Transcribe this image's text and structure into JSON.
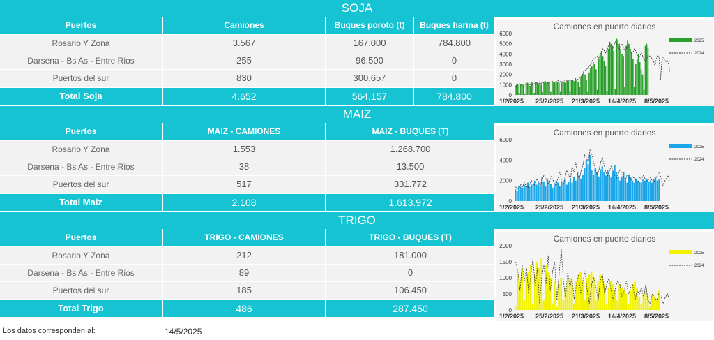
{
  "soja": {
    "title": "SOJA",
    "headers": [
      "Puertos",
      "Camiones",
      "Buques poroto (t)",
      "Buques harina (t)"
    ],
    "rows": [
      [
        "Rosario Y Zona",
        "3.567",
        "167.000",
        "784.800"
      ],
      [
        "Darsena - Bs As - Entre Rios",
        "255",
        "96.500",
        "0"
      ],
      [
        "Puertos del sur",
        "830",
        "300.657",
        "0"
      ]
    ],
    "total": [
      "Total Soja",
      "4.652",
      "564.157",
      "784.800"
    ]
  },
  "maiz": {
    "title": "MAIZ",
    "headers": [
      "Puertos",
      "MAIZ - CAMIONES",
      "MAIZ - BUQUES (T)"
    ],
    "rows": [
      [
        "Rosario Y Zona",
        "1.553",
        "1.268.700"
      ],
      [
        "Darsena - Bs As - Entre Rios",
        "38",
        "13.500"
      ],
      [
        "Puertos del sur",
        "517",
        "331.772"
      ]
    ],
    "total": [
      "Total Maíz",
      "2.108",
      "1.613.972"
    ]
  },
  "trigo": {
    "title": "TRIGO",
    "headers": [
      "Puertos",
      "TRIGO - CAMIONES",
      "TRIGO - BUQUES (T)"
    ],
    "rows": [
      [
        "Rosario Y Zona",
        "212",
        "181.000"
      ],
      [
        "Darsena - Bs As - Entre Rios",
        "89",
        "0"
      ],
      [
        "Puertos del sur",
        "185",
        "106.450"
      ]
    ],
    "total": [
      "Total Trigo",
      "486",
      "287.450"
    ]
  },
  "footer": {
    "label": "Los datos corresponden al:",
    "date": "14/5/2025"
  },
  "chart_data": [
    {
      "type": "bar",
      "title": "Camiones en puerto diarios",
      "color": "#2ca02c",
      "ylim": [
        0,
        6000
      ],
      "yticks": [
        "0",
        "1000",
        "2000",
        "3000",
        "4000",
        "5000",
        "6000"
      ],
      "xticks": [
        "1/2/2025",
        "25/2/2025",
        "21/3/2025",
        "14/4/2025",
        "8/5/2025"
      ],
      "legend": [
        "2025",
        "2024"
      ],
      "series": [
        {
          "name": "2025",
          "values": [
            900,
            1000,
            950,
            200,
            1050,
            1100,
            1000,
            150,
            1150,
            1200,
            1100,
            900,
            1250,
            1200,
            200,
            1250,
            1200,
            1100,
            1300,
            1000,
            250,
            1300,
            1350,
            1200,
            1300,
            1250,
            300,
            1350,
            1300,
            1200,
            1350,
            1300,
            1200,
            300,
            1250,
            1350,
            1300,
            1200,
            1400,
            1350,
            300,
            1500,
            1400,
            1350,
            1600,
            1500,
            1300,
            800,
            1700,
            2000,
            2300,
            2000,
            1500,
            300,
            2200,
            2600,
            2800,
            3200,
            3000,
            2500,
            500,
            3500,
            4000,
            4300,
            3800,
            3300,
            2800,
            400,
            4500,
            5200,
            5000,
            4800,
            4300,
            600,
            5500,
            5400,
            5000,
            4500,
            4000,
            3800,
            800,
            4800,
            5300,
            5000,
            4500,
            4200,
            3500,
            800,
            3000,
            3500,
            4000,
            3200,
            2500,
            2000,
            500,
            4800,
            5000,
            4600
          ]
        },
        {
          "name": "2024",
          "values": [
            800,
            900,
            1000,
            1100,
            1000,
            900,
            850,
            950,
            1000,
            1100,
            1050,
            1000,
            950,
            1000,
            1100,
            1200,
            1150,
            1100,
            1050,
            1150,
            1200,
            1250,
            1300,
            1200,
            1150,
            1250,
            1300,
            1350,
            1250,
            1200,
            1300,
            1400,
            1350,
            1300,
            1250,
            1350,
            1450,
            1400,
            1350,
            1400,
            1500,
            1450,
            1400,
            1500,
            1600,
            1550,
            1500,
            1650,
            1800,
            2000,
            2200,
            2400,
            2500,
            2600,
            2800,
            3000,
            3300,
            3500,
            3600,
            3700,
            3800,
            3600,
            3900,
            4200,
            4500,
            4300,
            4100,
            4400,
            4800,
            5000,
            4700,
            4500,
            4800,
            5200,
            5000,
            4700,
            4500,
            4800,
            5000,
            4600,
            4300,
            4500,
            4800,
            4600,
            4300,
            4000,
            4200,
            4500,
            4300,
            3900,
            3600,
            3800,
            4100,
            3800,
            3500,
            3300,
            3600,
            3900,
            3800,
            3700,
            3500,
            3300,
            2800,
            3600,
            3900,
            3600,
            1500,
            3300,
            3700,
            3500,
            3200,
            3400,
            3000,
            2200
          ]
        }
      ]
    },
    {
      "type": "bar",
      "title": "Camiones en puerto diarios",
      "color": "#1aa6e8",
      "ylim": [
        0,
        6000
      ],
      "yticks": [
        "0",
        "2000",
        "4000",
        "6000"
      ],
      "xticks": [
        "1/2/2025",
        "25/2/2025",
        "21/3/2025",
        "14/4/2025",
        "8/5/2025"
      ],
      "legend": [
        "2025",
        "2024"
      ],
      "series": [
        {
          "name": "2025",
          "values": [
            1200,
            1000,
            1500,
            1400,
            1300,
            1600,
            1500,
            1800,
            1400,
            1600,
            1700,
            2000,
            1600,
            1800,
            1500,
            2300,
            1900,
            1500,
            2200,
            2000,
            1700,
            1300,
            1600,
            2000,
            1800,
            1500,
            1900,
            1700,
            2200,
            1600,
            1900,
            2100,
            1800,
            2400,
            2000,
            2800,
            2400,
            2200,
            2600,
            3200,
            4000,
            3600,
            4500,
            3000,
            2600,
            3200,
            2800,
            2400,
            3100,
            3400,
            2800,
            2500,
            3000,
            2600,
            2300,
            2900,
            3500,
            2800,
            2400,
            2000,
            2400,
            2800,
            2200,
            1800,
            2600,
            2300,
            2000,
            1800,
            2200,
            2000,
            1900,
            1800,
            2100,
            2000,
            2200,
            1900,
            2000,
            1800,
            2200,
            2300,
            2000,
            2100
          ]
        },
        {
          "name": "2024",
          "values": [
            1400,
            1200,
            1300,
            1600,
            1400,
            1800,
            1500,
            1300,
            1700,
            2000,
            1800,
            1500,
            2200,
            1900,
            1500,
            2100,
            2500,
            2300,
            1800,
            1600,
            2400,
            2100,
            1700,
            1500,
            2300,
            2800,
            2000,
            1600,
            2400,
            3000,
            2500,
            2200,
            3400,
            2800,
            3800,
            2600,
            2200,
            3000,
            3500,
            4500,
            4200,
            3800,
            5000,
            4600,
            3800,
            3200,
            2600,
            3000,
            3800,
            4200,
            3500,
            2800,
            2400,
            3000,
            3400,
            2900,
            2500,
            2200,
            2700,
            3100,
            2800,
            2400,
            2100,
            2600,
            2300,
            2000,
            2400,
            2200,
            2000,
            1800,
            2300,
            2100,
            2500,
            2200,
            1900,
            2100,
            2300,
            2000,
            1800,
            2200,
            2500,
            2800,
            2300,
            1500,
            1900,
            2200,
            2500,
            2000
          ]
        }
      ]
    },
    {
      "type": "bar",
      "title": "Camiones en puerto diarios",
      "color": "#f2f200",
      "ylim": [
        0,
        2000
      ],
      "yticks": [
        "0",
        "500",
        "1000",
        "1500",
        "2000"
      ],
      "xticks": [
        "1/2/2025",
        "25/2/2025",
        "21/3/2025",
        "14/4/2025",
        "8/5/2025"
      ],
      "legend": [
        "2025",
        "2024"
      ],
      "series": [
        {
          "name": "2025",
          "values": [
            100,
            1100,
            900,
            1300,
            300,
            1000,
            1200,
            1400,
            200,
            1100,
            1500,
            1300,
            1600,
            300,
            1400,
            1200,
            1000,
            200,
            900,
            100,
            800,
            1000,
            300,
            700,
            900,
            1000,
            800,
            200,
            900,
            1100,
            1200,
            900,
            300,
            1000,
            1100,
            1200,
            1000,
            300,
            900,
            1100,
            1000,
            800,
            200,
            700,
            900,
            800,
            600,
            300,
            800,
            700,
            600,
            500,
            200,
            600,
            800,
            900,
            700,
            400,
            200,
            500,
            600,
            400,
            100,
            500,
            400,
            300,
            600
          ]
        },
        {
          "name": "2024",
          "values": [
            1500,
            1200,
            600,
            1400,
            900,
            1300,
            500,
            1100,
            1600,
            700,
            1300,
            200,
            1000,
            1400,
            800,
            1700,
            600,
            1200,
            1500,
            300,
            1100,
            1900,
            900,
            400,
            1200,
            700,
            1000,
            300,
            800,
            1100,
            500,
            900,
            1200,
            600,
            200,
            800,
            1000,
            700,
            300,
            900,
            1100,
            500,
            800,
            1000,
            600,
            300,
            700,
            900,
            800,
            400,
            600,
            900,
            500,
            700,
            800,
            300,
            600,
            500,
            700,
            400,
            800,
            300,
            200,
            500,
            400,
            300,
            500,
            400,
            200,
            400,
            500,
            300
          ]
        }
      ]
    }
  ]
}
